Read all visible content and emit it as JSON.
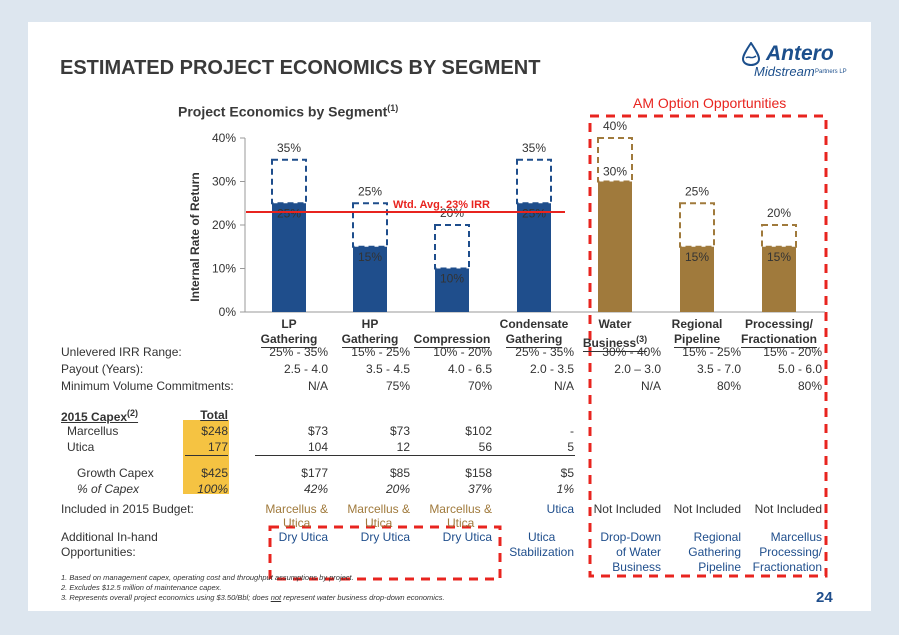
{
  "title": "ESTIMATED PROJECT ECONOMICS BY SEGMENT",
  "logo": {
    "name": "Antero",
    "line2": "Midstream",
    "line3": "Partners LP"
  },
  "chart_title": "Project Economics by Segment",
  "chart_title_sup": "(1)",
  "am_option_title": "AM Option Opportunities",
  "wtd_avg_label": "Wtd. Avg. 23% IRR",
  "page_number": "24",
  "colors": {
    "antero_blue": "#1f4e8c",
    "am_brown": "#a07a3c",
    "red": "#e8241f",
    "gold": "#f5c342"
  },
  "chart_data": {
    "type": "bar",
    "ylabel": "Internal Rate of Return",
    "ylim": [
      0,
      40
    ],
    "yticks": [
      "0%",
      "10%",
      "20%",
      "30%",
      "40%"
    ],
    "reference_line": 23,
    "categories": [
      "LP Gathering",
      "HP Gathering",
      "Compression",
      "Condensate Gathering",
      "Water Business",
      "Regional Pipeline",
      "Processing/ Fractionation"
    ],
    "category_lines": [
      [
        "LP",
        "Gathering"
      ],
      [
        "HP",
        "Gathering"
      ],
      [
        "",
        "Compression"
      ],
      [
        "Condensate",
        "Gathering"
      ],
      [
        "Water",
        "Business(3)"
      ],
      [
        "Regional",
        "Pipeline"
      ],
      [
        "Processing/",
        "Fractionation"
      ]
    ],
    "series": [
      {
        "name": "IRR Low",
        "values": [
          25,
          15,
          10,
          25,
          30,
          15,
          15
        ]
      },
      {
        "name": "IRR High",
        "values": [
          35,
          25,
          20,
          35,
          40,
          25,
          20
        ]
      }
    ],
    "low_labels": [
      "25%",
      "15%",
      "10%",
      "25%",
      "30%",
      "15%",
      "15%"
    ],
    "high_labels": [
      "35%",
      "25%",
      "20%",
      "35%",
      "40%",
      "25%",
      "20%"
    ],
    "bar_colors": [
      "#1f4e8c",
      "#1f4e8c",
      "#1f4e8c",
      "#1f4e8c",
      "#a07a3c",
      "#a07a3c",
      "#a07a3c"
    ]
  },
  "table": {
    "irr_label": "Unlevered IRR Range:",
    "irr": [
      "25% - 35%",
      "15% - 25%",
      "10% - 20%",
      "25% - 35%",
      "30% - 40%",
      "15% - 25%",
      "15% - 20%"
    ],
    "payout_label": "Payout (Years):",
    "payout": [
      "2.5 - 4.0",
      "3.5 - 4.5",
      "4.0 - 6.5",
      "2.0 - 3.5",
      "2.0 – 3.0",
      "3.5 - 7.0",
      "5.0 - 6.0"
    ],
    "mvc_label": "Minimum Volume Commitments:",
    "mvc": [
      "N/A",
      "75%",
      "70%",
      "N/A",
      "N/A",
      "80%",
      "80%"
    ],
    "capex_label": "2015 Capex",
    "capex_sup": "(2)",
    "total_label": "Total",
    "marcellus_label": "Marcellus",
    "marcellus_total": "$248",
    "marcellus": [
      "$73",
      "$73",
      "$102",
      "-"
    ],
    "utica_label": "Utica",
    "utica_total": "177",
    "utica": [
      "104",
      "12",
      "56",
      "5"
    ],
    "growth_label": "Growth Capex",
    "growth_total": "$425",
    "growth": [
      "$177",
      "$85",
      "$158",
      "$5"
    ],
    "pct_label": "% of Capex",
    "pct_total": "100%",
    "pct": [
      "42%",
      "20%",
      "37%",
      "1%"
    ],
    "budget_label": "Included in 2015 Budget:",
    "budget": [
      [
        "Marcellus &",
        "Utica"
      ],
      [
        "Marcellus &",
        "Utica"
      ],
      [
        "Marcellus &",
        "Utica"
      ],
      [
        "Utica"
      ],
      [
        "Not Included"
      ],
      [
        "Not Included"
      ],
      [
        "Not Included"
      ]
    ],
    "additional_label1": "Additional In-hand",
    "additional_label2": "Opportunities:",
    "additional": [
      [
        "Dry Utica"
      ],
      [
        "Dry Utica"
      ],
      [
        "Dry Utica"
      ],
      [
        "Utica",
        "Stabilization"
      ],
      [
        "Drop-Down",
        "of Water",
        "Business"
      ],
      [
        "Regional",
        "Gathering",
        "Pipeline"
      ],
      [
        "Marcellus",
        "Processing/",
        "Fractionation"
      ]
    ]
  },
  "footnotes": [
    "1.  Based on management capex, operating cost and throughput assumptions by project.",
    "2.  Excludes $12.5 million of maintenance capex.",
    "3.  Represents overall project economics using $3.50/Bbl; does not represent water business drop-down economics."
  ]
}
